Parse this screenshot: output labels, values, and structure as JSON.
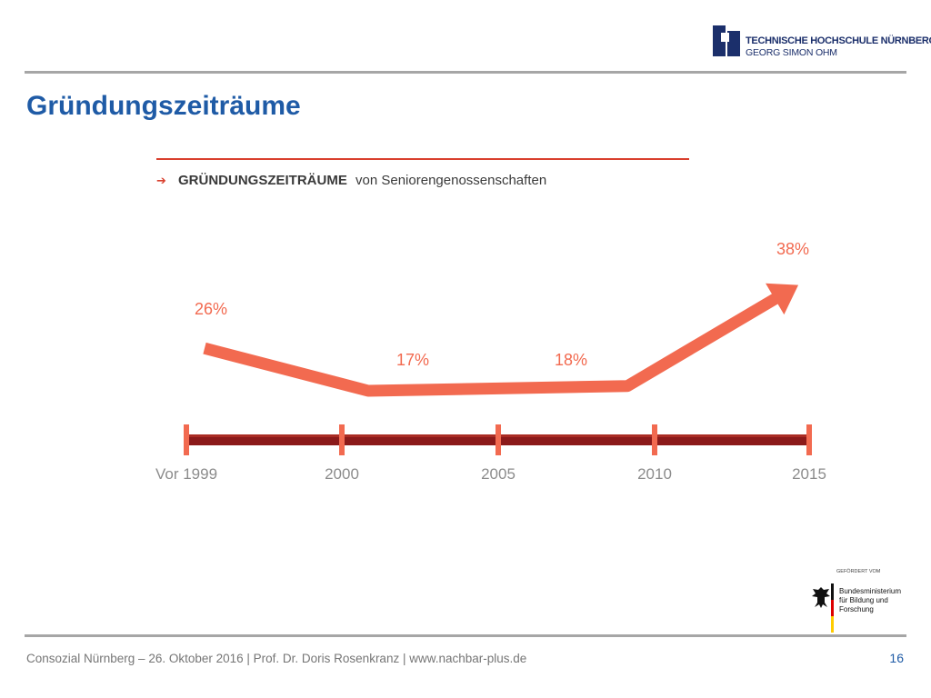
{
  "header": {
    "logo_line1": "TECHNISCHE HOCHSCHULE NÜRNBERG",
    "logo_line2": "GEORG SIMON OHM",
    "brand_color": "#1b2f6b"
  },
  "slide": {
    "title": "Gründungszeiträume",
    "title_color": "#1f5ba6"
  },
  "chart_data": {
    "type": "line",
    "title_bold": "GRÜNDUNGSZEITRÄUME",
    "title_rest": "von Seniorengenossenschaften",
    "title_arrow": "➔",
    "timeline_labels": [
      "Vor 1999",
      "2000",
      "2005",
      "2010",
      "2015"
    ],
    "series": [
      {
        "values": [
          26,
          17,
          18,
          38
        ],
        "labels": [
          "26%",
          "17%",
          "18%",
          "38%"
        ]
      }
    ],
    "line_color": "#f26a50",
    "timeline_color": "#8b1a1a",
    "tick_color": "#f26a50"
  },
  "sponsor": {
    "small_text": "GEFÖRDERT VOM",
    "name": "Bundesministerium für Bildung und Forschung"
  },
  "footer": {
    "text": "Consozial Nürnberg – 26. Oktober 2016 | Prof. Dr. Doris Rosenkranz  | www.nachbar-plus.de",
    "page_number": "16"
  }
}
